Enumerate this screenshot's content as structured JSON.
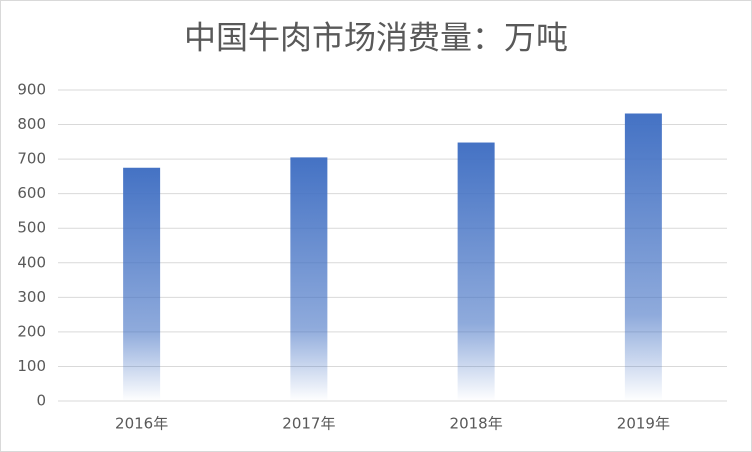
{
  "chart_data": {
    "type": "bar",
    "title": "中国牛肉市场消费量：万吨",
    "categories": [
      "2016年",
      "2017年",
      "2018年",
      "2019年"
    ],
    "values": [
      675,
      705,
      748,
      832
    ],
    "color": "#4472c4",
    "ylim": [
      0,
      900
    ],
    "yticks": [
      0,
      100,
      200,
      300,
      400,
      500,
      600,
      700,
      800,
      900
    ],
    "grid": true
  }
}
